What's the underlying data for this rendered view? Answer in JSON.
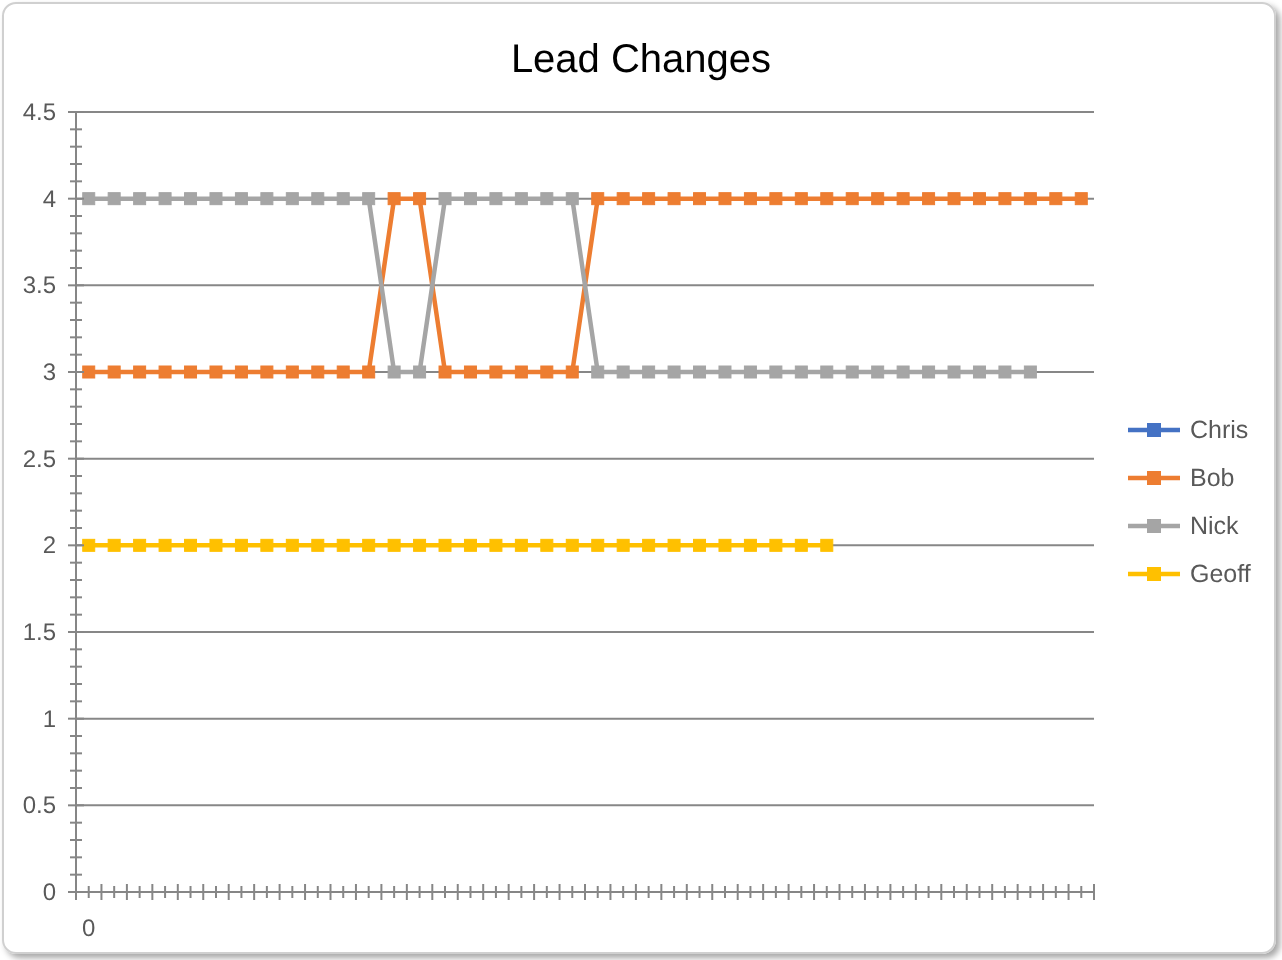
{
  "chart_data": {
    "type": "line",
    "title": "Lead Changes",
    "categories": [
      "0",
      null,
      null,
      null,
      null,
      null,
      null,
      null,
      null,
      null,
      null,
      null,
      null,
      null,
      null,
      null,
      null,
      null,
      null,
      null,
      null,
      null,
      null,
      null,
      null,
      null,
      null,
      null,
      null,
      null,
      null,
      null,
      null,
      null,
      null,
      null,
      null,
      null,
      null,
      null
    ],
    "series": [
      {
        "name": "Chris",
        "color": "#4472c4",
        "values": [
          null,
          null,
          null,
          null,
          null,
          null,
          null,
          null,
          null,
          null,
          null,
          null,
          null,
          null,
          null,
          null,
          null,
          null,
          null,
          null,
          null,
          null,
          null,
          null,
          null,
          null,
          null,
          null,
          null,
          null,
          null,
          null,
          null,
          null,
          null,
          null,
          null,
          null,
          null,
          null
        ]
      },
      {
        "name": "Bob",
        "color": "#ed7d31",
        "values": [
          3,
          3,
          3,
          3,
          3,
          3,
          3,
          3,
          3,
          3,
          3,
          3,
          4,
          4,
          3,
          3,
          3,
          3,
          3,
          3,
          4,
          4,
          4,
          4,
          4,
          4,
          4,
          4,
          4,
          4,
          4,
          4,
          4,
          4,
          4,
          4,
          4,
          4,
          4,
          4
        ]
      },
      {
        "name": "Nick",
        "color": "#a5a5a5",
        "values": [
          4,
          4,
          4,
          4,
          4,
          4,
          4,
          4,
          4,
          4,
          4,
          4,
          3,
          3,
          4,
          4,
          4,
          4,
          4,
          4,
          3,
          3,
          3,
          3,
          3,
          3,
          3,
          3,
          3,
          3,
          3,
          3,
          3,
          3,
          3,
          3,
          3,
          3,
          null,
          null
        ]
      },
      {
        "name": "Geoff",
        "color": "#ffc000",
        "values": [
          2,
          2,
          2,
          2,
          2,
          2,
          2,
          2,
          2,
          2,
          2,
          2,
          2,
          2,
          2,
          2,
          2,
          2,
          2,
          2,
          2,
          2,
          2,
          2,
          2,
          2,
          2,
          2,
          2,
          2,
          null,
          null,
          null,
          null,
          null,
          null,
          null,
          null,
          null,
          null
        ]
      }
    ],
    "ylim": [
      0,
      4.5
    ],
    "yticks": [
      0,
      {
        "value": 0.1,
        "label": null
      },
      {
        "value": 0.2,
        "label": null
      },
      {
        "value": 0.3,
        "label": null
      },
      {
        "value": 0.4,
        "label": null
      },
      0.5,
      {
        "value": 0.6,
        "label": null
      },
      {
        "value": 0.7,
        "label": null
      },
      {
        "value": 0.8,
        "label": null
      },
      {
        "value": 0.9,
        "label": null
      },
      1,
      {
        "value": 1.1,
        "label": null
      },
      {
        "value": 1.2,
        "label": null
      },
      {
        "value": 1.3,
        "label": null
      },
      {
        "value": 1.4,
        "label": null
      },
      1.5,
      {
        "value": 1.6,
        "label": null
      },
      {
        "value": 1.7,
        "label": null
      },
      {
        "value": 1.8,
        "label": null
      },
      {
        "value": 1.9,
        "label": null
      },
      2,
      {
        "value": 2.1,
        "label": null
      },
      {
        "value": 2.2,
        "label": null
      },
      {
        "value": 2.3,
        "label": null
      },
      {
        "value": 2.4,
        "label": null
      },
      2.5,
      {
        "value": 2.6,
        "label": null
      },
      {
        "value": 2.7,
        "label": null
      },
      {
        "value": 2.8,
        "label": null
      },
      {
        "value": 2.9,
        "label": null
      },
      3,
      {
        "value": 3.1,
        "label": null
      },
      {
        "value": 3.2,
        "label": null
      },
      {
        "value": 3.3,
        "label": null
      },
      {
        "value": 3.4,
        "label": null
      },
      3.5,
      {
        "value": 3.6,
        "label": null
      },
      {
        "value": 3.7,
        "label": null
      },
      {
        "value": 3.8,
        "label": null
      },
      {
        "value": 3.9,
        "label": null
      },
      4,
      {
        "value": 4.1,
        "label": null
      },
      {
        "value": 4.2,
        "label": null
      },
      {
        "value": 4.3,
        "label": null
      },
      {
        "value": 4.4,
        "label": null
      },
      4.5
    ],
    "grid": "y",
    "legend": "right",
    "marker": "square",
    "line_style": "solid"
  }
}
